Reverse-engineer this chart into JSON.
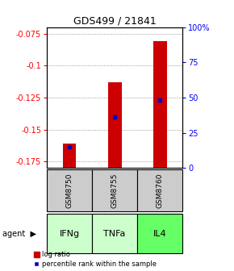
{
  "title": "GDS499 / 21841",
  "categories": [
    "IFNg",
    "TNFa",
    "IL4"
  ],
  "sample_ids": [
    "GSM8750",
    "GSM8755",
    "GSM8760"
  ],
  "log_ratios": [
    -0.161,
    -0.113,
    -0.081
  ],
  "percentile_ranks": [
    15,
    36,
    48
  ],
  "ylim_left": [
    -0.18,
    -0.07
  ],
  "ylim_right": [
    0,
    100
  ],
  "yticks_left": [
    -0.175,
    -0.15,
    -0.125,
    -0.1,
    -0.075
  ],
  "ytick_labels_left": [
    "-0.175",
    "-0.15",
    "-0.125",
    "-0.1",
    "-0.075"
  ],
  "yticks_right": [
    0,
    25,
    50,
    75,
    100
  ],
  "ytick_labels_right": [
    "0",
    "25",
    "50",
    "75",
    "100%"
  ],
  "bar_color": "#cc0000",
  "marker_color": "#0000cc",
  "bar_width": 0.3,
  "agent_colors": [
    "#ccffcc",
    "#ccffcc",
    "#66ff66"
  ],
  "sample_bg": "#cccccc",
  "legend_bar_label": "log ratio",
  "legend_marker_label": "percentile rank within the sample",
  "bar_bottom": -0.18
}
